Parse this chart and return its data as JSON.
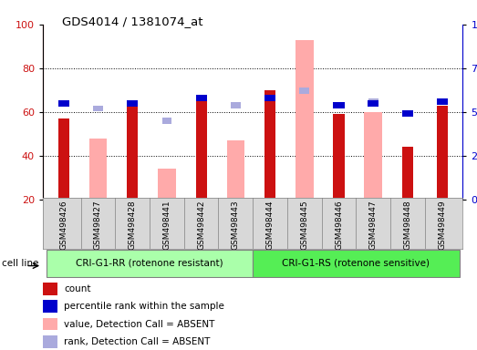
{
  "title": "GDS4014 / 1381074_at",
  "samples": [
    "GSM498426",
    "GSM498427",
    "GSM498428",
    "GSM498441",
    "GSM498442",
    "GSM498443",
    "GSM498444",
    "GSM498445",
    "GSM498446",
    "GSM498447",
    "GSM498448",
    "GSM498449"
  ],
  "count_values": [
    57,
    0,
    63,
    0,
    68,
    0,
    70,
    0,
    59,
    0,
    44,
    63
  ],
  "percentile_rank": [
    55,
    0,
    55,
    0,
    58,
    0,
    58,
    0,
    54,
    55,
    49,
    56
  ],
  "absent_value": [
    0,
    48,
    0,
    34,
    0,
    47,
    0,
    93,
    0,
    60,
    0,
    0
  ],
  "absent_rank": [
    0,
    52,
    0,
    45,
    0,
    54,
    0,
    62,
    0,
    56,
    0,
    0
  ],
  "count_color": "#cc1111",
  "percentile_color": "#0000cc",
  "absent_value_color": "#ffaaaa",
  "absent_rank_color": "#aaaadd",
  "group1_label": "CRI-G1-RR (rotenone resistant)",
  "group2_label": "CRI-G1-RS (rotenone sensitive)",
  "group1_color": "#aaffaa",
  "group2_color": "#55ee55",
  "cell_line_label": "cell line",
  "ymin": 20,
  "ymax": 100,
  "left_axis_color": "#cc1111",
  "right_axis_color": "#0000cc",
  "legend_items": [
    "count",
    "percentile rank within the sample",
    "value, Detection Call = ABSENT",
    "rank, Detection Call = ABSENT"
  ],
  "absent_rank_pct": [
    0,
    52,
    0,
    45,
    0,
    54,
    0,
    62,
    0,
    56,
    0,
    0
  ],
  "percentile_rank_pct": [
    55,
    0,
    55,
    0,
    58,
    0,
    58,
    0,
    54,
    55,
    49,
    56
  ]
}
